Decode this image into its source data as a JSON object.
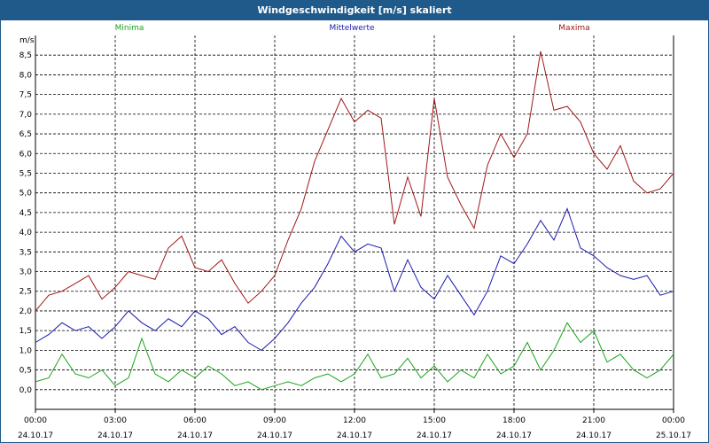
{
  "window": {
    "title": "Windgeschwindigkeit [m/s] skaliert"
  },
  "colors": {
    "min": "#1aa31a",
    "mean": "#1a1ab0",
    "max": "#a01818",
    "titlebar": "#1f5a8a"
  },
  "chart_data": {
    "type": "line",
    "ylabel": "m/s",
    "ylim": [
      -0.5,
      9.0
    ],
    "yticks": [
      0.0,
      0.5,
      1.0,
      1.5,
      2.0,
      2.5,
      3.0,
      3.5,
      4.0,
      4.5,
      5.0,
      5.5,
      6.0,
      6.5,
      7.0,
      7.5,
      8.0,
      8.5
    ],
    "ytick_labels": [
      "0,0",
      "0,5",
      "1,0",
      "1,5",
      "2,0",
      "2,5",
      "3,0",
      "3,5",
      "4,0",
      "4,5",
      "5,0",
      "5,5",
      "6,0",
      "6,5",
      "7,0",
      "7,5",
      "8,0",
      "8,5"
    ],
    "xlim": [
      0,
      24
    ],
    "xticks": [
      0,
      3,
      6,
      9,
      12,
      15,
      18,
      21,
      24
    ],
    "xtick_time_labels": [
      "00:00",
      "03:00",
      "06:00",
      "09:00",
      "12:00",
      "15:00",
      "18:00",
      "21:00",
      "00:00"
    ],
    "xtick_date_labels": [
      "24.10.17",
      "24.10.17",
      "24.10.17",
      "24.10.17",
      "24.10.17",
      "24.10.17",
      "24.10.17",
      "24.10.17",
      "25.10.17"
    ],
    "grid": true,
    "legend_position": "top",
    "series": [
      {
        "name": "Minima",
        "color": "#1aa31a",
        "x": [
          0,
          0.5,
          1,
          1.5,
          2,
          2.5,
          3,
          3.5,
          4,
          4.5,
          5,
          5.5,
          6,
          6.5,
          7,
          7.5,
          8,
          8.5,
          9,
          9.5,
          10,
          10.5,
          11,
          11.5,
          12,
          12.5,
          13,
          13.5,
          14,
          14.5,
          15,
          15.5,
          16,
          16.5,
          17,
          17.5,
          18,
          18.5,
          19,
          19.5,
          20,
          20.5,
          21,
          21.5,
          22,
          22.5,
          23,
          23.5,
          24
        ],
        "values": [
          0.2,
          0.3,
          0.9,
          0.4,
          0.3,
          0.5,
          0.1,
          0.3,
          1.3,
          0.4,
          0.2,
          0.5,
          0.3,
          0.6,
          0.4,
          0.1,
          0.2,
          0.0,
          0.1,
          0.2,
          0.1,
          0.3,
          0.4,
          0.2,
          0.4,
          0.9,
          0.3,
          0.4,
          0.8,
          0.3,
          0.6,
          0.2,
          0.5,
          0.3,
          0.9,
          0.4,
          0.6,
          1.2,
          0.5,
          1.0,
          1.7,
          1.2,
          1.5,
          0.7,
          0.9,
          0.5,
          0.3,
          0.5,
          0.9
        ]
      },
      {
        "name": "Mittelwerte",
        "color": "#1a1ab0",
        "x": [
          0,
          0.5,
          1,
          1.5,
          2,
          2.5,
          3,
          3.5,
          4,
          4.5,
          5,
          5.5,
          6,
          6.5,
          7,
          7.5,
          8,
          8.5,
          9,
          9.5,
          10,
          10.5,
          11,
          11.5,
          12,
          12.5,
          13,
          13.5,
          14,
          14.5,
          15,
          15.5,
          16,
          16.5,
          17,
          17.5,
          18,
          18.5,
          19,
          19.5,
          20,
          20.5,
          21,
          21.5,
          22,
          22.5,
          23,
          23.5,
          24
        ],
        "values": [
          1.2,
          1.4,
          1.7,
          1.5,
          1.6,
          1.3,
          1.6,
          2.0,
          1.7,
          1.5,
          1.8,
          1.6,
          2.0,
          1.8,
          1.4,
          1.6,
          1.2,
          1.0,
          1.3,
          1.7,
          2.2,
          2.6,
          3.2,
          3.9,
          3.5,
          3.7,
          3.6,
          2.5,
          3.3,
          2.6,
          2.3,
          2.9,
          2.4,
          1.9,
          2.5,
          3.4,
          3.2,
          3.7,
          4.3,
          3.8,
          4.6,
          3.6,
          3.4,
          3.1,
          2.9,
          2.8,
          2.9,
          2.4,
          2.5
        ]
      },
      {
        "name": "Maxima",
        "color": "#a01818",
        "x": [
          0,
          0.5,
          1,
          1.5,
          2,
          2.5,
          3,
          3.5,
          4,
          4.5,
          5,
          5.5,
          6,
          6.5,
          7,
          7.5,
          8,
          8.5,
          9,
          9.5,
          10,
          10.5,
          11,
          11.5,
          12,
          12.5,
          13,
          13.5,
          14,
          14.5,
          15,
          15.5,
          16,
          16.5,
          17,
          17.5,
          18,
          18.5,
          19,
          19.5,
          20,
          20.5,
          21,
          21.5,
          22,
          22.5,
          23,
          23.5,
          24
        ],
        "values": [
          2.0,
          2.4,
          2.5,
          2.7,
          2.9,
          2.3,
          2.6,
          3.0,
          2.9,
          2.8,
          3.6,
          3.9,
          3.1,
          3.0,
          3.3,
          2.7,
          2.2,
          2.5,
          2.9,
          3.8,
          4.6,
          5.8,
          6.6,
          7.4,
          6.8,
          7.1,
          6.9,
          4.2,
          5.4,
          4.4,
          7.4,
          5.4,
          4.7,
          4.1,
          5.7,
          6.5,
          5.9,
          6.5,
          8.6,
          7.1,
          7.2,
          6.8,
          6.0,
          5.6,
          6.2,
          5.3,
          5.0,
          5.1,
          5.5
        ]
      }
    ]
  }
}
